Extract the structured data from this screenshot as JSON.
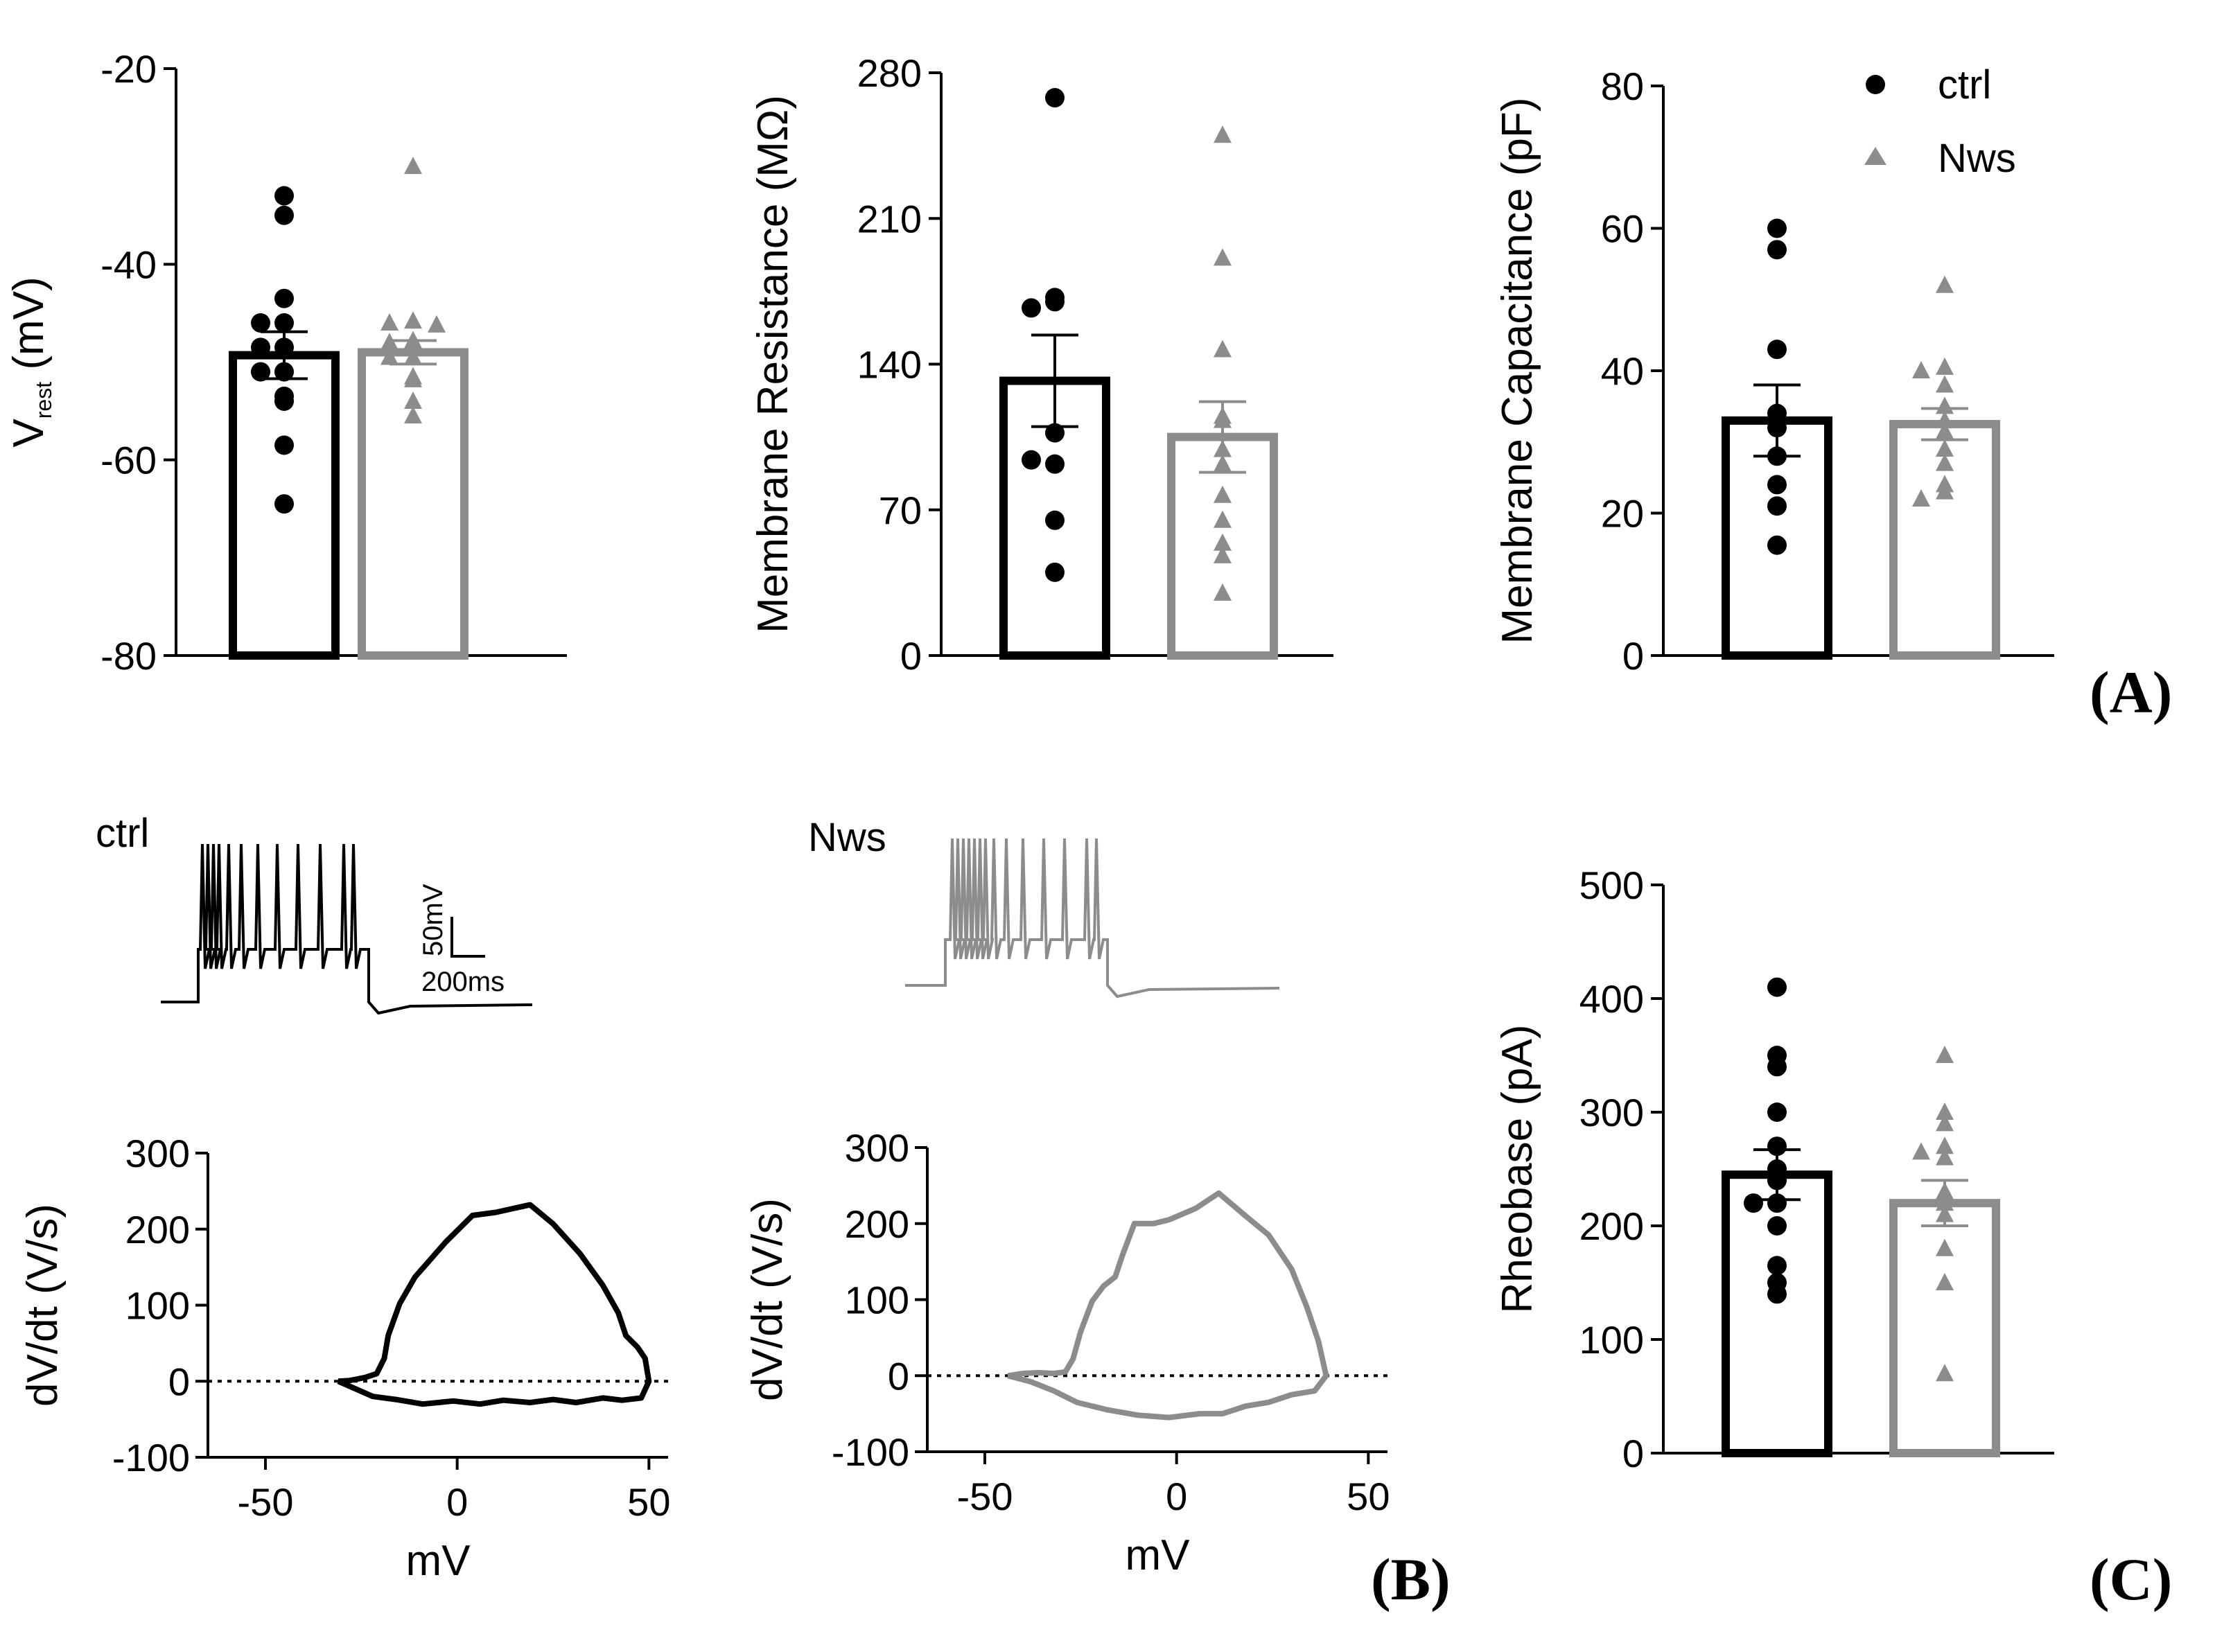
{
  "colors": {
    "ctrl": "#000000",
    "nws": "#8c8c8c",
    "axis": "#000000"
  },
  "panel_labels": {
    "A": "(A)",
    "B": "(B)",
    "C": "(C)"
  },
  "legend": {
    "ctrl": "ctrl",
    "nws": "Nws"
  },
  "chart_data": [
    {
      "id": "vrest",
      "type": "bar",
      "ylabel": "V",
      "ylabel_sub": "rest",
      "ylabel_unit": " (mV)",
      "ylim": [
        -80,
        -20
      ],
      "yticks": [
        -20,
        -40,
        -60,
        -80
      ],
      "base": -80,
      "categories": [
        "ctrl",
        "Nws"
      ],
      "series": [
        {
          "name": "ctrl",
          "mean": -49.3,
          "sem": 2.4,
          "points": [
            -33,
            -35,
            -43.5,
            -46,
            -46,
            -48.5,
            -48.5,
            -51,
            -51,
            -53.5,
            -54,
            -58.5,
            -64.5
          ],
          "marker": "circle"
        },
        {
          "name": "Nws",
          "mean": -49,
          "sem": 1.2,
          "points": [
            -30,
            -45.8,
            -46,
            -46.2,
            -47.8,
            -48,
            -49.5,
            -49.5,
            -51.5,
            -51.8,
            -54,
            -55.5
          ],
          "marker": "triangle"
        }
      ]
    },
    {
      "id": "rm",
      "type": "bar",
      "ylabel": "Membrane Resistance (MΩ)",
      "ylim": [
        0,
        280
      ],
      "yticks": [
        0,
        70,
        140,
        210,
        280
      ],
      "base": 0,
      "categories": [
        "ctrl",
        "Nws"
      ],
      "series": [
        {
          "name": "ctrl",
          "mean": 132,
          "sem": 22,
          "points": [
            268,
            172,
            170,
            167,
            107,
            92,
            94,
            65,
            40
          ],
          "marker": "circle"
        },
        {
          "name": "Nws",
          "mean": 105,
          "sem": 17,
          "points": [
            250,
            191,
            147,
            115,
            113,
            99,
            92,
            77,
            65,
            54,
            48,
            30
          ],
          "marker": "triangle"
        }
      ]
    },
    {
      "id": "cm",
      "type": "bar",
      "ylabel": "Membrane Capacitance (pF)",
      "ylim": [
        0,
        80
      ],
      "yticks": [
        0,
        20,
        40,
        60,
        80
      ],
      "base": 0,
      "categories": [
        "ctrl",
        "Nws"
      ],
      "series": [
        {
          "name": "ctrl",
          "mean": 33,
          "sem": 5,
          "points": [
            60,
            57,
            43,
            34,
            32,
            28,
            24,
            21,
            15.5
          ],
          "marker": "circle"
        },
        {
          "name": "Nws",
          "mean": 32.5,
          "sem": 2.2,
          "points": [
            52,
            40.5,
            40,
            38,
            35,
            33,
            31.5,
            29,
            27,
            24,
            23,
            22
          ],
          "marker": "triangle"
        }
      ]
    },
    {
      "id": "rheobase",
      "type": "bar",
      "ylabel": "Rheobase (pA)",
      "ylim": [
        0,
        500
      ],
      "yticks": [
        0,
        100,
        200,
        300,
        400,
        500
      ],
      "base": 0,
      "categories": [
        "ctrl",
        "Nws"
      ],
      "series": [
        {
          "name": "ctrl",
          "mean": 245,
          "sem": 22,
          "points": [
            410,
            350,
            340,
            300,
            270,
            250,
            240,
            220,
            220,
            200,
            165,
            150,
            140
          ],
          "marker": "circle"
        },
        {
          "name": "Nws",
          "mean": 220,
          "sem": 20,
          "points": [
            350,
            300,
            290,
            270,
            265,
            260,
            230,
            220,
            210,
            180,
            150,
            70
          ],
          "marker": "triangle"
        }
      ]
    },
    {
      "id": "phase_ctrl",
      "type": "line",
      "xlabel": "mV",
      "ylabel": "dV/dt (V/s)",
      "xlim": [
        -65,
        55
      ],
      "ylim": [
        -100,
        300
      ],
      "xticks": [
        -50,
        0,
        50
      ],
      "yticks": [
        -100,
        0,
        100,
        200,
        300
      ],
      "zero_line": true,
      "series_name": "ctrl",
      "x": [
        -31,
        -28,
        -24,
        -21,
        -19,
        -18,
        -15,
        -11,
        -7,
        -3,
        4,
        10,
        19,
        25,
        32,
        38,
        42,
        44,
        47,
        49,
        50,
        48,
        43,
        38,
        31,
        25,
        19,
        12,
        6,
        -1,
        -9,
        -16,
        -22,
        -27,
        -31
      ],
      "y": [
        0,
        1,
        5,
        10,
        30,
        60,
        102,
        137,
        160,
        183,
        218,
        222,
        232,
        207,
        168,
        126,
        90,
        60,
        45,
        30,
        0,
        -22,
        -25,
        -22,
        -28,
        -24,
        -28,
        -25,
        -30,
        -26,
        -30,
        -24,
        -20,
        -9,
        0
      ]
    },
    {
      "id": "phase_nws",
      "type": "line",
      "xlabel": "mV",
      "ylabel": "dV/dt (V/s)",
      "xlim": [
        -65,
        55
      ],
      "ylim": [
        -100,
        300
      ],
      "xticks": [
        -50,
        0,
        50
      ],
      "yticks": [
        -100,
        0,
        100,
        200,
        300
      ],
      "zero_line": true,
      "series_name": "Nws",
      "x": [
        -44,
        -40,
        -36,
        -32,
        -29,
        -27,
        -25,
        -22,
        -19,
        -16,
        -14,
        -11,
        -6,
        -2,
        5,
        11,
        18,
        24,
        30,
        34,
        37,
        39,
        36,
        30,
        24,
        18,
        12,
        6,
        -2,
        -10,
        -18,
        -26,
        -32,
        -38,
        -44
      ],
      "y": [
        0,
        3,
        4,
        3,
        5,
        22,
        58,
        98,
        118,
        130,
        160,
        200,
        200,
        205,
        220,
        240,
        210,
        185,
        140,
        90,
        45,
        0,
        -20,
        -25,
        -35,
        -40,
        -50,
        -50,
        -55,
        -52,
        -45,
        -35,
        -20,
        -8,
        0
      ]
    }
  ],
  "traces": {
    "ctrl": {
      "label": "ctrl",
      "color": "#000000"
    },
    "nws": {
      "label": "Nws",
      "color": "#8c8c8c"
    },
    "scale_bar": {
      "voltage_label": "50mV",
      "time_label": "200ms"
    }
  }
}
